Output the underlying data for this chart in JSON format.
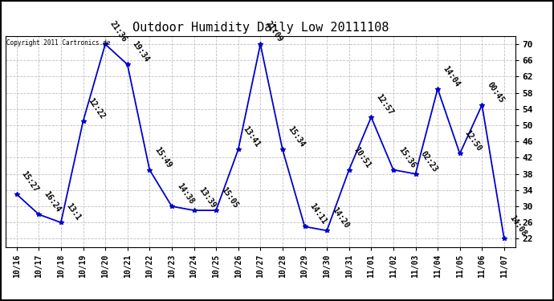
{
  "title": "Outdoor Humidity Daily Low 20111108",
  "copyright": "Copyright 2011 Cartronics.de",
  "line_color": "#0000cc",
  "marker": "*",
  "background_color": "#ffffff",
  "grid_color": "#c0c0c0",
  "x_labels": [
    "10/16",
    "10/17",
    "10/18",
    "10/19",
    "10/20",
    "10/21",
    "10/22",
    "10/23",
    "10/24",
    "10/25",
    "10/26",
    "10/27",
    "10/28",
    "10/29",
    "10/30",
    "10/31",
    "11/01",
    "11/02",
    "11/03",
    "11/04",
    "11/05",
    "11/06",
    "11/07"
  ],
  "y_values": [
    33,
    28,
    26,
    51,
    70,
    65,
    39,
    30,
    29,
    29,
    44,
    70,
    44,
    25,
    24,
    39,
    52,
    39,
    38,
    59,
    43,
    55,
    22
  ],
  "point_labels": [
    "15:27",
    "16:24",
    "13:1",
    "12:22",
    "21:36",
    "19:34",
    "15:49",
    "14:38",
    "13:39",
    "15:05",
    "13:41",
    "21:09",
    "15:34",
    "14:11",
    "14:20",
    "10:51",
    "12:57",
    "15:36",
    "02:23",
    "14:04",
    "12:50",
    "00:45",
    "14:08"
  ],
  "label_rotation": -55,
  "ylim": [
    20,
    72
  ],
  "yticks": [
    22,
    26,
    30,
    34,
    38,
    42,
    46,
    50,
    54,
    58,
    62,
    66,
    70
  ],
  "title_fontsize": 11,
  "label_fontsize": 7,
  "tick_fontsize": 7,
  "ylabel_fontsize": 8
}
